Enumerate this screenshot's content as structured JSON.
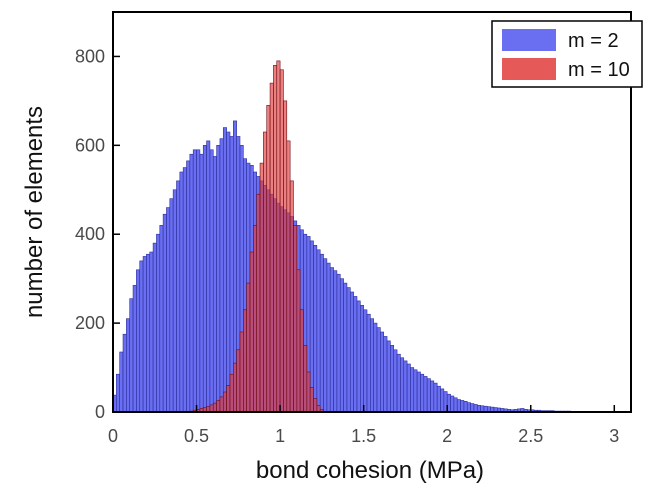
{
  "chart_data": {
    "type": "bar",
    "title": "",
    "xlabel": "bond cohesion (MPa)",
    "ylabel": "number of elements",
    "xlim": [
      0,
      3.1
    ],
    "ylim": [
      0,
      900
    ],
    "x_ticks": [
      0,
      0.5,
      1,
      1.5,
      2,
      2.5,
      3
    ],
    "x_tick_labels": [
      "0",
      "0.5",
      "1",
      "1.5",
      "2",
      "2.5",
      "3"
    ],
    "y_ticks": [
      0,
      200,
      400,
      600,
      800
    ],
    "y_tick_labels": [
      "0",
      "200",
      "400",
      "600",
      "800"
    ],
    "grid": false,
    "legend_position": "top-right",
    "bin_width": 0.02,
    "series": [
      {
        "name": "m = 2",
        "color": "#5a5ef0",
        "x": [
          0.0,
          0.02,
          0.04,
          0.06,
          0.08,
          0.1,
          0.12,
          0.14,
          0.16,
          0.18,
          0.2,
          0.22,
          0.24,
          0.26,
          0.28,
          0.3,
          0.32,
          0.34,
          0.36,
          0.38,
          0.4,
          0.42,
          0.44,
          0.46,
          0.48,
          0.5,
          0.52,
          0.54,
          0.56,
          0.58,
          0.6,
          0.62,
          0.64,
          0.66,
          0.68,
          0.7,
          0.72,
          0.74,
          0.76,
          0.78,
          0.8,
          0.82,
          0.84,
          0.86,
          0.88,
          0.9,
          0.92,
          0.94,
          0.96,
          0.98,
          1.0,
          1.02,
          1.04,
          1.06,
          1.08,
          1.1,
          1.12,
          1.14,
          1.16,
          1.18,
          1.2,
          1.22,
          1.24,
          1.26,
          1.28,
          1.3,
          1.32,
          1.34,
          1.36,
          1.38,
          1.4,
          1.42,
          1.44,
          1.46,
          1.48,
          1.5,
          1.52,
          1.54,
          1.56,
          1.58,
          1.6,
          1.62,
          1.64,
          1.66,
          1.68,
          1.7,
          1.72,
          1.74,
          1.76,
          1.78,
          1.8,
          1.82,
          1.84,
          1.86,
          1.88,
          1.9,
          1.92,
          1.94,
          1.96,
          1.98,
          2.0,
          2.02,
          2.04,
          2.06,
          2.08,
          2.1,
          2.12,
          2.14,
          2.16,
          2.18,
          2.2,
          2.22,
          2.24,
          2.26,
          2.28,
          2.3,
          2.32,
          2.34,
          2.36,
          2.38,
          2.4,
          2.42,
          2.44,
          2.46,
          2.48,
          2.5,
          2.52,
          2.54,
          2.56,
          2.58,
          2.6,
          2.62,
          2.64,
          2.66,
          2.68,
          2.7,
          2.72,
          2.74,
          2.76,
          2.78,
          2.8,
          2.82,
          2.84,
          2.86,
          2.88,
          2.9,
          2.92,
          2.94,
          2.96,
          2.98,
          3.0
        ],
        "values": [
          38,
          85,
          135,
          175,
          210,
          255,
          285,
          320,
          340,
          350,
          355,
          360,
          380,
          400,
          420,
          445,
          460,
          480,
          500,
          520,
          540,
          550,
          565,
          580,
          590,
          590,
          580,
          600,
          610,
          590,
          575,
          600,
          615,
          640,
          630,
          620,
          655,
          620,
          600,
          570,
          560,
          555,
          540,
          530,
          520,
          510,
          500,
          490,
          480,
          470,
          462,
          455,
          448,
          440,
          430,
          420,
          410,
          400,
          395,
          385,
          375,
          365,
          355,
          345,
          335,
          325,
          318,
          310,
          300,
          290,
          280,
          270,
          260,
          250,
          240,
          230,
          220,
          210,
          200,
          190,
          180,
          170,
          160,
          150,
          140,
          130,
          122,
          115,
          108,
          100,
          95,
          90,
          85,
          80,
          75,
          70,
          65,
          58,
          52,
          46,
          40,
          36,
          32,
          28,
          26,
          24,
          21,
          19,
          17,
          15,
          14,
          13,
          12,
          11,
          10,
          9,
          8,
          7,
          6,
          5,
          6,
          7,
          8,
          6,
          5,
          5,
          4,
          4,
          3,
          3,
          3,
          3,
          2,
          2,
          2,
          2,
          2,
          1,
          1,
          1,
          1,
          1,
          1,
          1,
          1,
          1,
          1,
          1,
          1,
          1,
          1
        ]
      },
      {
        "name": "m = 10",
        "color": "#e23c3c",
        "x": [
          0.46,
          0.48,
          0.5,
          0.52,
          0.54,
          0.56,
          0.58,
          0.6,
          0.62,
          0.64,
          0.66,
          0.68,
          0.7,
          0.72,
          0.74,
          0.76,
          0.78,
          0.8,
          0.82,
          0.84,
          0.86,
          0.88,
          0.9,
          0.92,
          0.94,
          0.96,
          0.98,
          1.0,
          1.02,
          1.04,
          1.06,
          1.08,
          1.1,
          1.12,
          1.14,
          1.16,
          1.18,
          1.2,
          1.22,
          1.24
        ],
        "values": [
          2,
          4,
          6,
          8,
          10,
          12,
          16,
          20,
          26,
          34,
          45,
          60,
          85,
          110,
          140,
          180,
          230,
          290,
          360,
          420,
          490,
          560,
          630,
          690,
          740,
          780,
          790,
          770,
          700,
          610,
          520,
          420,
          320,
          230,
          150,
          90,
          55,
          30,
          15,
          6
        ]
      }
    ]
  }
}
